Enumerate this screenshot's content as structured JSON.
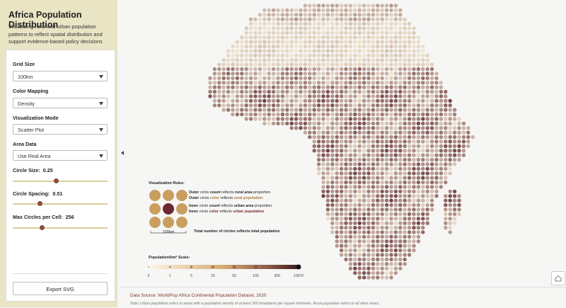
{
  "sidebar": {
    "title": "Africa Population Distribution",
    "subtitle": "Visualizing rural and urban population patterns to reflect spatial distribution and support evidence-based policy decisions",
    "controls": [
      {
        "label": "Grid Size",
        "value": "100km"
      },
      {
        "label": "Color Mapping",
        "value": "Density"
      },
      {
        "label": "Visualization Mode",
        "value": "Scatter Plot"
      },
      {
        "label": "Area Data",
        "value": "Use Real Area"
      }
    ],
    "sliders": [
      {
        "label": "Circle Size:",
        "value": 0.25
      },
      {
        "label": "Circle Spacing:",
        "value": 0.51
      },
      {
        "label": "Max Circles per Cell:",
        "value": 256
      }
    ],
    "export": "Export SVG"
  },
  "legend": {
    "title": "Visualization Rules:",
    "scale_label": "100km",
    "rules": [
      [
        "Outer",
        "circle",
        "count",
        "reflects",
        "rural area",
        "proportion"
      ],
      [
        "Outer",
        "circle",
        "color",
        "reflects",
        "rural population"
      ],
      [
        "Inner",
        "circle",
        "count",
        "reflects",
        "urban area",
        "proportion"
      ],
      [
        "Inner",
        "circle",
        "color",
        "reflects",
        "urban population"
      ]
    ],
    "total": "Total number of circles reflects total population"
  },
  "scale": {
    "title": "Population/km² Scale:",
    "ticks": [
      0,
      1,
      5,
      15,
      50,
      100,
      300,
      10070
    ]
  },
  "footer": {
    "source": "Data Source: WorldPop Africa Continental Population Dataset, 2020",
    "note": "Note: Urban population refers to areas with a population density of at least 300 inhabitants per square kilometer. Rural population refers to all other areas."
  }
}
